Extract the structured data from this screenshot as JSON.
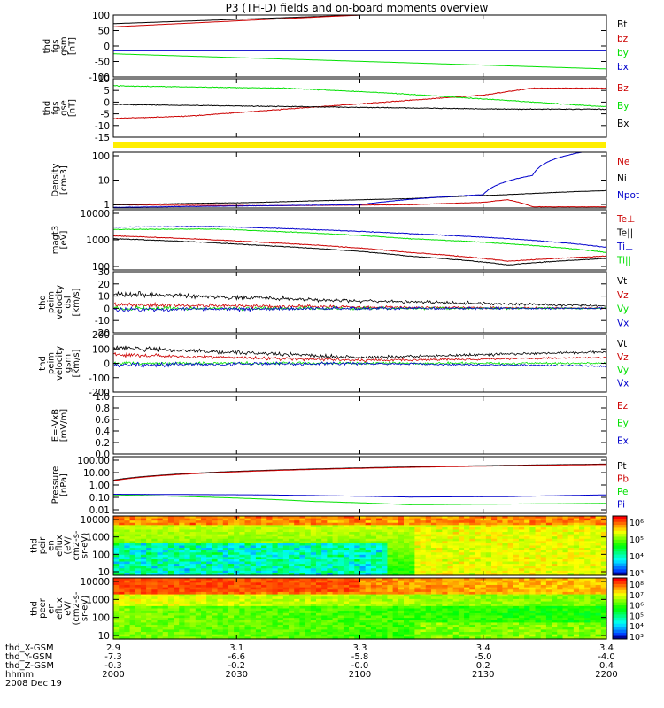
{
  "title": "P3 (TH-D) fields and on-board moments overview",
  "colors": {
    "black": "#000000",
    "red": "#cc0000",
    "green": "#00e000",
    "blue": "#0000cc",
    "yellow": "#ffee00"
  },
  "chart_data": [
    {
      "id": "fgs_gsm",
      "type": "line",
      "ylabel": [
        "thd",
        "fgs",
        "gsm",
        "[nT]"
      ],
      "ylim": [
        -100,
        100
      ],
      "yticks": [
        "100",
        "50",
        "0",
        "-50",
        "-100"
      ],
      "series": [
        {
          "name": "Bt",
          "color": "#000000",
          "x": [
            0,
            0.5
          ],
          "y": [
            72,
            100
          ]
        },
        {
          "name": "bz",
          "color": "#cc0000",
          "x": [
            0,
            0.5
          ],
          "y": [
            62,
            100
          ]
        },
        {
          "name": "by",
          "color": "#00e000",
          "x": [
            0,
            1
          ],
          "y": [
            -25,
            -74
          ]
        },
        {
          "name": "bx",
          "color": "#0000cc",
          "x": [
            0,
            1
          ],
          "y": [
            -15,
            -15
          ]
        }
      ]
    },
    {
      "id": "fgs_gse",
      "type": "line",
      "ylabel": [
        "thd",
        "fgs",
        "gse",
        "[nT]"
      ],
      "ylim": [
        -15,
        10
      ],
      "yticks": [
        "10",
        "5",
        "0",
        "-5",
        "-10",
        "-15"
      ],
      "series": [
        {
          "name": "Bz",
          "color": "#cc0000",
          "x": [
            0,
            0.15,
            0.35,
            0.55,
            0.75,
            0.85,
            1
          ],
          "y": [
            -7,
            -6,
            -3,
            0,
            3,
            6,
            6
          ]
        },
        {
          "name": "By",
          "color": "#00e000",
          "x": [
            0,
            0.15,
            0.35,
            0.55,
            0.7,
            0.85,
            1
          ],
          "y": [
            7,
            6.5,
            6,
            4,
            2,
            0,
            -2
          ]
        },
        {
          "name": "Bx",
          "color": "#000000",
          "x": [
            0,
            0.2,
            0.4,
            0.6,
            0.8,
            1
          ],
          "y": [
            -1,
            -1.5,
            -2,
            -2.5,
            -3,
            -3
          ]
        }
      ]
    },
    {
      "id": "density",
      "type": "line",
      "scale": "log",
      "ylabel": [
        "Density",
        "[cm-3]"
      ],
      "ylim": [
        0.8,
        200
      ],
      "yticks": [
        "100",
        "10",
        "1"
      ],
      "series": [
        {
          "name": "Ne",
          "color": "#cc0000",
          "x": [
            0,
            0.3,
            0.6,
            0.75,
            0.8,
            0.85,
            1
          ],
          "y": [
            1.1,
            1.0,
            1.1,
            1.4,
            1.8,
            0.9,
            0.9
          ]
        },
        {
          "name": "Ni",
          "color": "#000000",
          "x": [
            0,
            0.3,
            0.6,
            0.8,
            1
          ],
          "y": [
            1.1,
            1.4,
            2.0,
            3.0,
            4.5
          ]
        },
        {
          "name": "Npot",
          "color": "#0000cc",
          "x": [
            0,
            0.5,
            0.75,
            0.85,
            0.95
          ],
          "y": [
            0.85,
            1.1,
            3.0,
            20,
            200
          ]
        }
      ]
    },
    {
      "id": "temperature",
      "type": "line",
      "scale": "log",
      "ylabel": [
        "magt3",
        "[eV]"
      ],
      "ylim": [
        100,
        12000
      ],
      "yticks": [
        "10000",
        "1000",
        "100"
      ],
      "series": [
        {
          "name": "Te⊥",
          "color": "#cc0000",
          "x": [
            0,
            0.3,
            0.6,
            0.8,
            1
          ],
          "y": [
            1500,
            900,
            400,
            200,
            300
          ]
        },
        {
          "name": "Te||",
          "color": "#000000",
          "x": [
            0,
            0.3,
            0.6,
            0.8,
            1
          ],
          "y": [
            1200,
            700,
            300,
            150,
            250
          ]
        },
        {
          "name": "Ti⊥",
          "color": "#0000cc",
          "x": [
            0,
            0.2,
            0.6,
            1
          ],
          "y": [
            3000,
            3200,
            1800,
            600
          ]
        },
        {
          "name": "Ti||",
          "color": "#00e000",
          "x": [
            0,
            0.2,
            0.6,
            1
          ],
          "y": [
            2500,
            2600,
            1200,
            400
          ]
        }
      ]
    },
    {
      "id": "velocity_dsl",
      "type": "line",
      "ylabel": [
        "thd",
        "peim",
        "velocity",
        "dsl",
        "[km/s]"
      ],
      "ylim": [
        -20,
        30
      ],
      "yticks": [
        "30",
        "20",
        "10",
        "0",
        "-10",
        "-20"
      ],
      "series": [
        {
          "name": "Vt",
          "color": "#000000",
          "x": [
            0,
            0.5,
            1
          ],
          "y": [
            12,
            6,
            2
          ]
        },
        {
          "name": "Vz",
          "color": "#cc0000",
          "x": [
            0,
            0.5,
            1
          ],
          "y": [
            3,
            1,
            0
          ]
        },
        {
          "name": "Vy",
          "color": "#00e000",
          "x": [
            0,
            0.5,
            1
          ],
          "y": [
            0,
            0,
            0
          ]
        },
        {
          "name": "Vx",
          "color": "#0000cc",
          "x": [
            0,
            0.5,
            1
          ],
          "y": [
            -1,
            0,
            0
          ]
        }
      ]
    },
    {
      "id": "velocity_gsm",
      "type": "line",
      "ylabel": [
        "thd",
        "peim",
        "velocity",
        "gsm",
        "[km/s]"
      ],
      "ylim": [
        -200,
        200
      ],
      "yticks": [
        "200",
        "100",
        "0",
        "-100",
        "-200"
      ],
      "series": [
        {
          "name": "Vt",
          "color": "#000000",
          "x": [
            0,
            0.5,
            1
          ],
          "y": [
            110,
            40,
            80
          ]
        },
        {
          "name": "Vz",
          "color": "#cc0000",
          "x": [
            0,
            0.5,
            1
          ],
          "y": [
            60,
            20,
            40
          ]
        },
        {
          "name": "Vy",
          "color": "#00e000",
          "x": [
            0,
            0.5,
            1
          ],
          "y": [
            0,
            0,
            0
          ]
        },
        {
          "name": "Vx",
          "color": "#0000cc",
          "x": [
            0,
            0.5,
            1
          ],
          "y": [
            -10,
            0,
            -20
          ]
        }
      ]
    },
    {
      "id": "efield",
      "type": "line",
      "ylabel": [
        "E=-VxB",
        "[mV/m]"
      ],
      "ylim": [
        0,
        1
      ],
      "yticks": [
        "1.0",
        "0.8",
        "0.6",
        "0.4",
        "0.2",
        "0.0"
      ],
      "series": [
        {
          "name": "Ez",
          "color": "#cc0000",
          "x": [],
          "y": []
        },
        {
          "name": "Ey",
          "color": "#00e000",
          "x": [],
          "y": []
        },
        {
          "name": "Ex",
          "color": "#0000cc",
          "x": [],
          "y": []
        }
      ]
    },
    {
      "id": "pressure",
      "type": "line",
      "scale": "log",
      "ylabel": [
        "Pressure",
        "[nPa]"
      ],
      "ylim": [
        0.01,
        100
      ],
      "yticks": [
        "100.00",
        "10.00",
        "1.00",
        "0.10",
        "0.01"
      ],
      "series": [
        {
          "name": "Pt",
          "color": "#000000",
          "x": [
            0,
            1
          ],
          "y": [
            2.2,
            30
          ]
        },
        {
          "name": "Pb",
          "color": "#cc0000",
          "x": [
            0,
            1
          ],
          "y": [
            2.0,
            28
          ]
        },
        {
          "name": "Pe",
          "color": "#00e000",
          "x": [
            0,
            0.4,
            0.6,
            1
          ],
          "y": [
            0.2,
            0.07,
            0.04,
            0.05
          ]
        },
        {
          "name": "Pi",
          "color": "#0000cc",
          "x": [
            0,
            0.3,
            0.6,
            0.8,
            1
          ],
          "y": [
            0.22,
            0.2,
            0.14,
            0.15,
            0.2
          ]
        }
      ]
    },
    {
      "id": "peir_spec",
      "type": "heatmap",
      "ylabel": [
        "thd",
        "peir",
        "en",
        "eflux",
        "(eV/",
        "cm2-s-",
        "sr-eV)"
      ],
      "ylim": [
        10,
        20000
      ],
      "yticks": [
        "10000",
        "1000",
        "100",
        "10"
      ],
      "colorbar": {
        "ticks": [
          "10⁶",
          "10⁵",
          "10⁴",
          "10³"
        ]
      }
    },
    {
      "id": "peer_spec",
      "type": "heatmap",
      "ylabel": [
        "thd",
        "peer",
        "en",
        "eflux",
        "eV/",
        "(cm2-s-",
        "sr-eV)"
      ],
      "ylim": [
        10,
        20000
      ],
      "yticks": [
        "10000",
        "1000",
        "100",
        "10"
      ],
      "colorbar": {
        "ticks": [
          "10⁸",
          "10⁷",
          "10⁶",
          "10⁵",
          "10⁴",
          "10³"
        ]
      }
    }
  ],
  "x_axis": {
    "rows": [
      {
        "label": "thd_X-GSM",
        "values": [
          "2.9",
          "3.1",
          "3.3",
          "3.4",
          "3.4"
        ]
      },
      {
        "label": "thd_Y-GSM",
        "values": [
          "-7.3",
          "-6.6",
          "-5.8",
          "-5.0",
          "-4.0"
        ]
      },
      {
        "label": "thd_Z-GSM",
        "values": [
          "-0.3",
          "-0.2",
          "-0.0",
          "0.2",
          "0.4"
        ]
      },
      {
        "label": "hhmm",
        "values": [
          "2000",
          "2030",
          "2100",
          "2130",
          "2200"
        ]
      }
    ],
    "date": "2008 Dec 19"
  }
}
